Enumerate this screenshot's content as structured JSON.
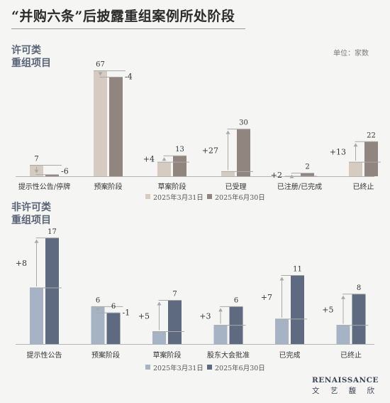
{
  "title": "“并购六条”后披露重组案例所处阶段",
  "unit": "单位：家数",
  "brand": {
    "en": "RENAISSANCE",
    "zh": "文 艺 馥 欣"
  },
  "colors": {
    "permit_d1": "#d6cbc0",
    "permit_d2": "#918580",
    "nonpermit_d1": "#a6b3c4",
    "nonpermit_d2": "#5d6a80",
    "axis": "#b5b5b5",
    "label": "#333333",
    "arrow": "#a9a9a9"
  },
  "chart_data": [
    {
      "type": "bar",
      "title": "许可类重组项目",
      "title_lines": [
        "许可类",
        "重组项目"
      ],
      "categories": [
        "提示性公告/停牌",
        "预案阶段",
        "草案阶段",
        "已受理",
        "已注册/已完成",
        "已终止"
      ],
      "series": [
        {
          "name": "2025年3月31日",
          "values": [
            7,
            67,
            9,
            3,
            0,
            9
          ]
        },
        {
          "name": "2025年6月30日",
          "values": [
            1,
            63,
            13,
            30,
            2,
            22
          ]
        }
      ],
      "changes": [
        "-6",
        "-4",
        "+4",
        "+27",
        "+2",
        "+13"
      ],
      "value_labels": [
        "7",
        "67",
        "13",
        "30",
        "2",
        "22"
      ],
      "ylim": [
        0,
        70
      ]
    },
    {
      "type": "bar",
      "title": "非许可类重组项目",
      "title_lines": [
        "非许可类",
        "重组项目"
      ],
      "categories": [
        "提示性公告",
        "预案阶段",
        "草案阶段",
        "股东大会批准",
        "已完成",
        "已终止"
      ],
      "series": [
        {
          "name": "2025年3月31日",
          "values": [
            9,
            6,
            2,
            3,
            4,
            3
          ]
        },
        {
          "name": "2025年6月30日",
          "values": [
            17,
            5,
            7,
            6,
            11,
            8
          ]
        }
      ],
      "changes": [
        "+8",
        "-1",
        "+5",
        "+3",
        "+7",
        "+5"
      ],
      "value_labels": [
        "17",
        "6",
        "7",
        "6",
        "11",
        "8"
      ],
      "ylim": [
        0,
        18
      ]
    }
  ]
}
